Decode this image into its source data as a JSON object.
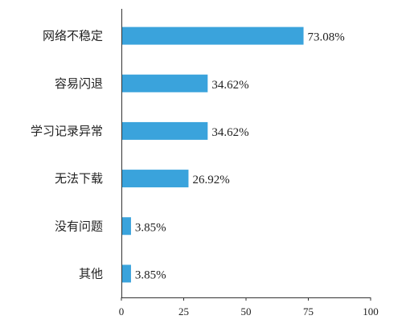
{
  "chart_data": {
    "type": "bar",
    "orientation": "horizontal",
    "categories": [
      "网络不稳定",
      "容易闪退",
      "学习记录异常",
      "无法下载",
      "没有问题",
      "其他"
    ],
    "values": [
      73.08,
      34.62,
      34.62,
      26.92,
      3.85,
      3.85
    ],
    "value_labels": [
      "73.08%",
      "34.62%",
      "34.62%",
      "26.92%",
      "3.85%",
      "3.85%"
    ],
    "xlim": [
      0,
      100
    ],
    "xticks": [
      0,
      25,
      50,
      75,
      100
    ],
    "xtick_labels": [
      "0",
      "25",
      "50",
      "75",
      "100"
    ],
    "grid": false,
    "bar_color": "#3aa3dc",
    "axis_color": "#333333"
  }
}
